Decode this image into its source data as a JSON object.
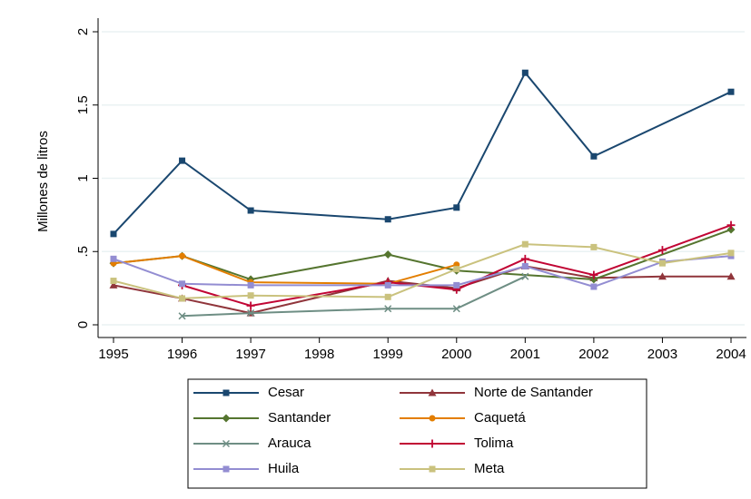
{
  "chart_data": {
    "type": "line",
    "y_label": "Millones de litros",
    "xlim": [
      1995,
      2004
    ],
    "xticks": [
      1995,
      1996,
      1997,
      1998,
      1999,
      2000,
      2001,
      2002,
      2003,
      2004
    ],
    "ylim": [
      0,
      2
    ],
    "yticks": [
      0,
      {
        "value": 0.5,
        "label": ".5"
      },
      1,
      1.5,
      2
    ],
    "grid": true,
    "legend": "bottom",
    "series": [
      {
        "name": "Cesar",
        "color": "#1a476f",
        "marker": "square",
        "x": [
          1995,
          1996,
          1997,
          1999,
          2000,
          2001,
          2002,
          2004
        ],
        "values": [
          0.62,
          1.12,
          0.78,
          0.72,
          0.8,
          1.72,
          1.15,
          1.59
        ]
      },
      {
        "name": "Norte de Santander",
        "color": "#90353b",
        "marker": "triangle",
        "x": [
          1995,
          1996,
          1997,
          1999,
          2000,
          2001,
          2002,
          2003,
          2004
        ],
        "values": [
          0.27,
          0.18,
          0.08,
          0.3,
          0.25,
          0.4,
          0.32,
          0.33,
          0.33
        ]
      },
      {
        "name": "Santander",
        "color": "#55752f",
        "marker": "diamond",
        "x": [
          1995,
          1996,
          1997,
          1999,
          2000,
          2002,
          2004
        ],
        "values": [
          0.42,
          0.47,
          0.31,
          0.48,
          0.37,
          0.31,
          0.65
        ]
      },
      {
        "name": "Caquetá",
        "color": "#e37e00",
        "marker": "circle",
        "x": [
          1995,
          1996,
          1997,
          1999,
          2000
        ],
        "values": [
          0.42,
          0.47,
          0.29,
          0.28,
          0.41
        ]
      },
      {
        "name": "Arauca",
        "color": "#6e8e84",
        "marker": "x",
        "x": [
          1996,
          1997,
          1999,
          2000,
          2001
        ],
        "values": [
          0.06,
          0.08,
          0.11,
          0.11,
          0.33
        ]
      },
      {
        "name": "Tolima",
        "color": "#c10534",
        "marker": "plus",
        "x": [
          1996,
          1997,
          1999,
          2000,
          2001,
          2002,
          2003,
          2004
        ],
        "values": [
          0.27,
          0.13,
          0.29,
          0.24,
          0.45,
          0.34,
          0.51,
          0.68
        ]
      },
      {
        "name": "Huila",
        "color": "#938dd2",
        "marker": "square",
        "x": [
          1995,
          1996,
          1997,
          1999,
          2000,
          2001,
          2002,
          2003,
          2004
        ],
        "values": [
          0.45,
          0.28,
          0.27,
          0.27,
          0.27,
          0.4,
          0.26,
          0.43,
          0.47
        ]
      },
      {
        "name": "Meta",
        "color": "#cac27e",
        "marker": "square",
        "x": [
          1995,
          1996,
          1997,
          1999,
          2000,
          2001,
          2002,
          2003,
          2004
        ],
        "values": [
          0.3,
          0.18,
          0.2,
          0.19,
          0.38,
          0.55,
          0.53,
          0.42,
          0.49
        ]
      }
    ]
  }
}
